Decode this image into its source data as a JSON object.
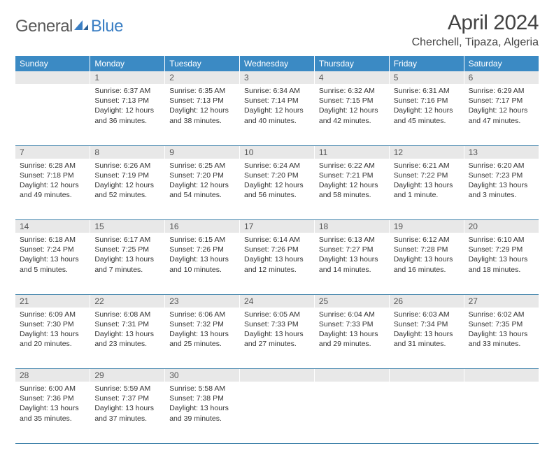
{
  "logo": {
    "general": "General",
    "blue": "Blue"
  },
  "title": "April 2024",
  "location": "Cherchell, Tipaza, Algeria",
  "colors": {
    "header_bg": "#3b8ac4",
    "header_text": "#ffffff",
    "daynum_bg": "#e8e8e8",
    "daynum_text": "#555555",
    "rule": "#3b7fa8",
    "logo_gray": "#5a5a5a",
    "logo_blue": "#3b7fc4"
  },
  "dayHeaders": [
    "Sunday",
    "Monday",
    "Tuesday",
    "Wednesday",
    "Thursday",
    "Friday",
    "Saturday"
  ],
  "weeks": [
    [
      {
        "num": "",
        "sunrise": "",
        "sunset": "",
        "daylight": ""
      },
      {
        "num": "1",
        "sunrise": "Sunrise: 6:37 AM",
        "sunset": "Sunset: 7:13 PM",
        "daylight": "Daylight: 12 hours and 36 minutes."
      },
      {
        "num": "2",
        "sunrise": "Sunrise: 6:35 AM",
        "sunset": "Sunset: 7:13 PM",
        "daylight": "Daylight: 12 hours and 38 minutes."
      },
      {
        "num": "3",
        "sunrise": "Sunrise: 6:34 AM",
        "sunset": "Sunset: 7:14 PM",
        "daylight": "Daylight: 12 hours and 40 minutes."
      },
      {
        "num": "4",
        "sunrise": "Sunrise: 6:32 AM",
        "sunset": "Sunset: 7:15 PM",
        "daylight": "Daylight: 12 hours and 42 minutes."
      },
      {
        "num": "5",
        "sunrise": "Sunrise: 6:31 AM",
        "sunset": "Sunset: 7:16 PM",
        "daylight": "Daylight: 12 hours and 45 minutes."
      },
      {
        "num": "6",
        "sunrise": "Sunrise: 6:29 AM",
        "sunset": "Sunset: 7:17 PM",
        "daylight": "Daylight: 12 hours and 47 minutes."
      }
    ],
    [
      {
        "num": "7",
        "sunrise": "Sunrise: 6:28 AM",
        "sunset": "Sunset: 7:18 PM",
        "daylight": "Daylight: 12 hours and 49 minutes."
      },
      {
        "num": "8",
        "sunrise": "Sunrise: 6:26 AM",
        "sunset": "Sunset: 7:19 PM",
        "daylight": "Daylight: 12 hours and 52 minutes."
      },
      {
        "num": "9",
        "sunrise": "Sunrise: 6:25 AM",
        "sunset": "Sunset: 7:20 PM",
        "daylight": "Daylight: 12 hours and 54 minutes."
      },
      {
        "num": "10",
        "sunrise": "Sunrise: 6:24 AM",
        "sunset": "Sunset: 7:20 PM",
        "daylight": "Daylight: 12 hours and 56 minutes."
      },
      {
        "num": "11",
        "sunrise": "Sunrise: 6:22 AM",
        "sunset": "Sunset: 7:21 PM",
        "daylight": "Daylight: 12 hours and 58 minutes."
      },
      {
        "num": "12",
        "sunrise": "Sunrise: 6:21 AM",
        "sunset": "Sunset: 7:22 PM",
        "daylight": "Daylight: 13 hours and 1 minute."
      },
      {
        "num": "13",
        "sunrise": "Sunrise: 6:20 AM",
        "sunset": "Sunset: 7:23 PM",
        "daylight": "Daylight: 13 hours and 3 minutes."
      }
    ],
    [
      {
        "num": "14",
        "sunrise": "Sunrise: 6:18 AM",
        "sunset": "Sunset: 7:24 PM",
        "daylight": "Daylight: 13 hours and 5 minutes."
      },
      {
        "num": "15",
        "sunrise": "Sunrise: 6:17 AM",
        "sunset": "Sunset: 7:25 PM",
        "daylight": "Daylight: 13 hours and 7 minutes."
      },
      {
        "num": "16",
        "sunrise": "Sunrise: 6:15 AM",
        "sunset": "Sunset: 7:26 PM",
        "daylight": "Daylight: 13 hours and 10 minutes."
      },
      {
        "num": "17",
        "sunrise": "Sunrise: 6:14 AM",
        "sunset": "Sunset: 7:26 PM",
        "daylight": "Daylight: 13 hours and 12 minutes."
      },
      {
        "num": "18",
        "sunrise": "Sunrise: 6:13 AM",
        "sunset": "Sunset: 7:27 PM",
        "daylight": "Daylight: 13 hours and 14 minutes."
      },
      {
        "num": "19",
        "sunrise": "Sunrise: 6:12 AM",
        "sunset": "Sunset: 7:28 PM",
        "daylight": "Daylight: 13 hours and 16 minutes."
      },
      {
        "num": "20",
        "sunrise": "Sunrise: 6:10 AM",
        "sunset": "Sunset: 7:29 PM",
        "daylight": "Daylight: 13 hours and 18 minutes."
      }
    ],
    [
      {
        "num": "21",
        "sunrise": "Sunrise: 6:09 AM",
        "sunset": "Sunset: 7:30 PM",
        "daylight": "Daylight: 13 hours and 20 minutes."
      },
      {
        "num": "22",
        "sunrise": "Sunrise: 6:08 AM",
        "sunset": "Sunset: 7:31 PM",
        "daylight": "Daylight: 13 hours and 23 minutes."
      },
      {
        "num": "23",
        "sunrise": "Sunrise: 6:06 AM",
        "sunset": "Sunset: 7:32 PM",
        "daylight": "Daylight: 13 hours and 25 minutes."
      },
      {
        "num": "24",
        "sunrise": "Sunrise: 6:05 AM",
        "sunset": "Sunset: 7:33 PM",
        "daylight": "Daylight: 13 hours and 27 minutes."
      },
      {
        "num": "25",
        "sunrise": "Sunrise: 6:04 AM",
        "sunset": "Sunset: 7:33 PM",
        "daylight": "Daylight: 13 hours and 29 minutes."
      },
      {
        "num": "26",
        "sunrise": "Sunrise: 6:03 AM",
        "sunset": "Sunset: 7:34 PM",
        "daylight": "Daylight: 13 hours and 31 minutes."
      },
      {
        "num": "27",
        "sunrise": "Sunrise: 6:02 AM",
        "sunset": "Sunset: 7:35 PM",
        "daylight": "Daylight: 13 hours and 33 minutes."
      }
    ],
    [
      {
        "num": "28",
        "sunrise": "Sunrise: 6:00 AM",
        "sunset": "Sunset: 7:36 PM",
        "daylight": "Daylight: 13 hours and 35 minutes."
      },
      {
        "num": "29",
        "sunrise": "Sunrise: 5:59 AM",
        "sunset": "Sunset: 7:37 PM",
        "daylight": "Daylight: 13 hours and 37 minutes."
      },
      {
        "num": "30",
        "sunrise": "Sunrise: 5:58 AM",
        "sunset": "Sunset: 7:38 PM",
        "daylight": "Daylight: 13 hours and 39 minutes."
      },
      {
        "num": "",
        "sunrise": "",
        "sunset": "",
        "daylight": ""
      },
      {
        "num": "",
        "sunrise": "",
        "sunset": "",
        "daylight": ""
      },
      {
        "num": "",
        "sunrise": "",
        "sunset": "",
        "daylight": ""
      },
      {
        "num": "",
        "sunrise": "",
        "sunset": "",
        "daylight": ""
      }
    ]
  ]
}
